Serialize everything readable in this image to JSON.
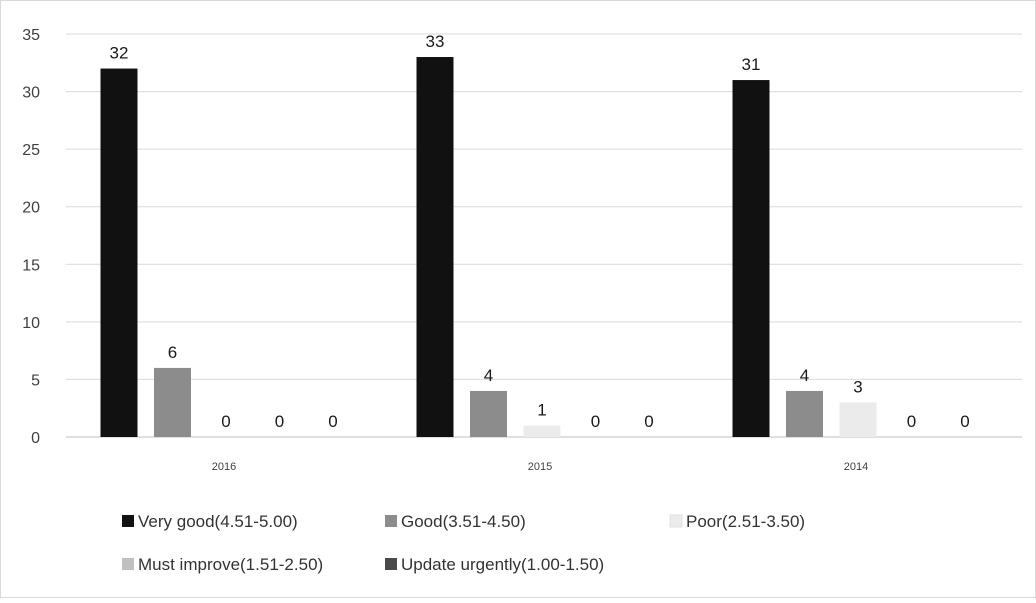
{
  "chart_data": {
    "type": "bar",
    "title": "",
    "xlabel": "",
    "ylabel": "",
    "categories": [
      "2016",
      "2015",
      "2014"
    ],
    "ylim": [
      0,
      35
    ],
    "yticks": [
      0,
      5,
      10,
      15,
      20,
      25,
      30,
      35
    ],
    "grid": true,
    "legend_position": "bottom",
    "data_labels": true,
    "series": [
      {
        "name": "Very good(4.51-5.00)",
        "values": [
          32,
          33,
          31
        ],
        "color": "#111111"
      },
      {
        "name": "Good(3.51-4.50)",
        "values": [
          6,
          4,
          4
        ],
        "color": "#8c8c8c"
      },
      {
        "name": "Poor(2.51-3.50)",
        "values": [
          0,
          1,
          3
        ],
        "color": "#ebebeb"
      },
      {
        "name": "Must improve(1.51-2.50)",
        "values": [
          0,
          0,
          0
        ],
        "color": "#c0c0c0"
      },
      {
        "name": "Update urgently(1.00-1.50)",
        "values": [
          0,
          0,
          0
        ],
        "color": "#4a4a4a"
      }
    ]
  }
}
